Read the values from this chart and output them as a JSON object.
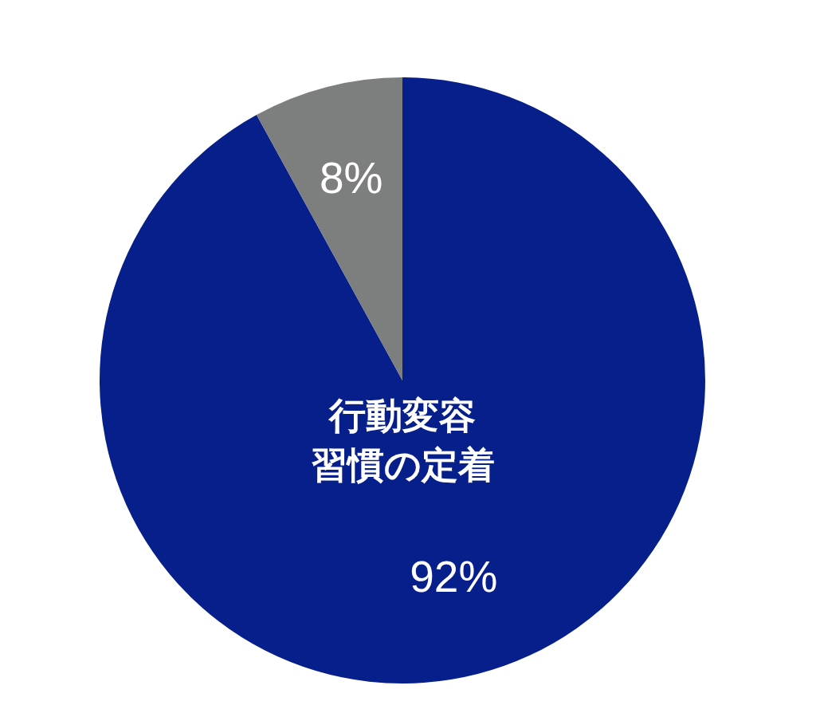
{
  "chart_data": {
    "type": "pie",
    "categories": [
      "行動変容習慣の定着",
      null
    ],
    "values": [
      92,
      8
    ],
    "colors": [
      "#061f8a",
      "#7d7f7e"
    ],
    "value_labels": [
      "92%",
      "8%"
    ]
  }
}
